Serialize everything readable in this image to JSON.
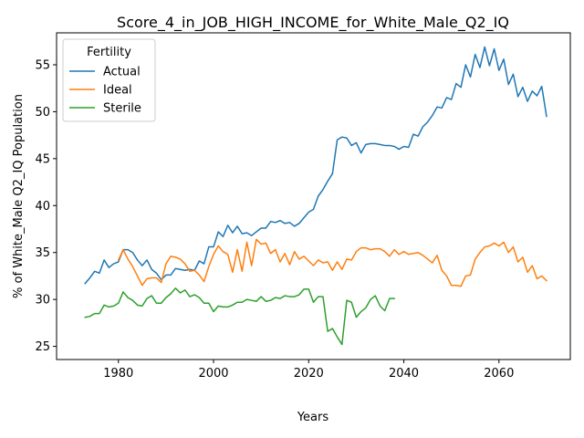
{
  "chart_data": {
    "type": "line",
    "title": "Score_4_in_JOB_HIGH_INCOME_for_White_Male_Q2_IQ",
    "xlabel": "Years",
    "ylabel": "% of White_Male Q2_IQ Population",
    "xlim": [
      1967,
      2075
    ],
    "ylim": [
      23.6,
      58.4
    ],
    "xticks": [
      1980,
      2000,
      2020,
      2040,
      2060
    ],
    "yticks": [
      25,
      30,
      35,
      40,
      45,
      50,
      55
    ],
    "grid": false,
    "legend": {
      "title": "Fertility",
      "position": "top-left"
    },
    "series": [
      {
        "name": "Actual",
        "color": "#1f77b4",
        "x": [
          1973,
          1974,
          1975,
          1976,
          1977,
          1978,
          1979,
          1980,
          1981,
          1982,
          1983,
          1984,
          1985,
          1986,
          1987,
          1988,
          1989,
          1990,
          1991,
          1992,
          1993,
          1994,
          1995,
          1996,
          1997,
          1998,
          1999,
          2000,
          2001,
          2002,
          2003,
          2004,
          2005,
          2006,
          2007,
          2008,
          2009,
          2010,
          2011,
          2012,
          2013,
          2014,
          2015,
          2016,
          2017,
          2018,
          2019,
          2020,
          2021,
          2022,
          2023,
          2024,
          2025,
          2026,
          2027,
          2028,
          2029,
          2030,
          2031,
          2032,
          2033,
          2034,
          2035,
          2036,
          2037,
          2038,
          2039,
          2040,
          2041,
          2042,
          2043,
          2044,
          2045,
          2046,
          2047,
          2048,
          2049,
          2050,
          2051,
          2052,
          2053,
          2054,
          2055,
          2056,
          2057,
          2058,
          2059,
          2060,
          2061,
          2062,
          2063,
          2064,
          2065,
          2066,
          2067,
          2068,
          2069,
          2070
        ],
        "values": [
          31.7,
          32.3,
          33.0,
          32.8,
          34.2,
          33.4,
          33.8,
          34.0,
          35.3,
          35.3,
          35.0,
          34.2,
          33.6,
          34.2,
          33.2,
          32.8,
          32.1,
          32.6,
          32.6,
          33.3,
          33.2,
          33.1,
          33.2,
          33.1,
          34.1,
          33.8,
          35.6,
          35.6,
          37.2,
          36.7,
          37.9,
          37.1,
          37.8,
          37.0,
          37.1,
          36.8,
          37.2,
          37.6,
          37.6,
          38.3,
          38.2,
          38.4,
          38.1,
          38.2,
          37.8,
          38.1,
          38.7,
          39.3,
          39.6,
          41.0,
          41.7,
          42.6,
          43.4,
          47.0,
          47.3,
          47.2,
          46.4,
          46.7,
          45.6,
          46.5,
          46.6,
          46.6,
          46.5,
          46.4,
          46.4,
          46.3,
          46.0,
          46.3,
          46.2,
          47.6,
          47.4,
          48.4,
          48.9,
          49.6,
          50.5,
          50.4,
          51.5,
          51.3,
          53.0,
          52.6,
          55.0,
          53.7,
          56.1,
          54.7,
          56.9,
          54.9,
          56.7,
          54.4,
          55.6,
          52.9,
          54.0,
          51.6,
          52.6,
          51.1,
          52.2,
          51.7,
          52.7,
          49.5
        ]
      },
      {
        "name": "Ideal",
        "color": "#ff7f0e",
        "x": [
          1980,
          1981,
          1982,
          1983,
          1984,
          1985,
          1986,
          1987,
          1988,
          1989,
          1990,
          1991,
          1992,
          1993,
          1994,
          1995,
          1996,
          1997,
          1998,
          1999,
          2000,
          2001,
          2002,
          2003,
          2004,
          2005,
          2006,
          2007,
          2008,
          2009,
          2010,
          2011,
          2012,
          2013,
          2014,
          2015,
          2016,
          2017,
          2018,
          2019,
          2020,
          2021,
          2022,
          2023,
          2024,
          2025,
          2026,
          2027,
          2028,
          2029,
          2030,
          2031,
          2032,
          2033,
          2034,
          2035,
          2036,
          2037,
          2038,
          2039,
          2040,
          2041,
          2042,
          2043,
          2044,
          2045,
          2046,
          2047,
          2048,
          2049,
          2050,
          2051,
          2052,
          2053,
          2054,
          2055,
          2056,
          2057,
          2058,
          2059,
          2060,
          2061,
          2062,
          2063,
          2064,
          2065,
          2066,
          2067,
          2068,
          2069,
          2070
        ],
        "values": [
          34.2,
          35.3,
          34.3,
          33.5,
          32.5,
          31.5,
          32.2,
          32.3,
          32.3,
          31.8,
          33.8,
          34.6,
          34.5,
          34.3,
          33.8,
          33.0,
          33.1,
          32.6,
          31.9,
          33.5,
          34.8,
          35.7,
          35.1,
          34.8,
          32.9,
          35.3,
          33.0,
          36.1,
          33.6,
          36.4,
          35.9,
          36.0,
          34.9,
          35.3,
          34.0,
          34.9,
          33.7,
          35.1,
          34.3,
          34.6,
          34.1,
          33.6,
          34.2,
          33.9,
          34.0,
          33.1,
          34.0,
          33.2,
          34.3,
          34.2,
          35.1,
          35.5,
          35.5,
          35.3,
          35.4,
          35.4,
          35.1,
          34.6,
          35.3,
          34.8,
          35.1,
          34.8,
          34.9,
          35.0,
          34.7,
          34.3,
          33.9,
          34.7,
          33.1,
          32.5,
          31.5,
          31.5,
          31.4,
          32.5,
          32.6,
          34.3,
          35.0,
          35.6,
          35.7,
          36.0,
          35.7,
          36.1,
          35.0,
          35.6,
          34.0,
          34.5,
          32.9,
          33.6,
          32.2,
          32.5,
          32.0
        ]
      },
      {
        "name": "Sterile",
        "color": "#2ca02c",
        "x": [
          1973,
          1974,
          1975,
          1976,
          1977,
          1978,
          1979,
          1980,
          1981,
          1982,
          1983,
          1984,
          1985,
          1986,
          1987,
          1988,
          1989,
          1990,
          1991,
          1992,
          1993,
          1994,
          1995,
          1996,
          1997,
          1998,
          1999,
          2000,
          2001,
          2002,
          2003,
          2004,
          2005,
          2006,
          2007,
          2008,
          2009,
          2010,
          2011,
          2012,
          2013,
          2014,
          2015,
          2016,
          2017,
          2018,
          2019,
          2020,
          2021,
          2022,
          2023,
          2024,
          2025,
          2026,
          2027,
          2028,
          2029,
          2030,
          2031,
          2032,
          2033,
          2034,
          2035,
          2036,
          2037,
          2038
        ],
        "values": [
          28.1,
          28.2,
          28.5,
          28.5,
          29.4,
          29.2,
          29.3,
          29.6,
          30.8,
          30.2,
          29.9,
          29.4,
          29.3,
          30.1,
          30.4,
          29.6,
          29.6,
          30.2,
          30.6,
          31.2,
          30.7,
          31.0,
          30.3,
          30.5,
          30.2,
          29.6,
          29.6,
          28.7,
          29.3,
          29.2,
          29.2,
          29.4,
          29.7,
          29.7,
          30.0,
          29.9,
          29.8,
          30.3,
          29.8,
          29.9,
          30.2,
          30.1,
          30.4,
          30.3,
          30.3,
          30.5,
          31.1,
          31.1,
          29.7,
          30.3,
          30.3,
          26.6,
          26.9,
          26.0,
          25.2,
          29.9,
          29.7,
          28.1,
          28.7,
          29.1,
          30.0,
          30.4,
          29.3,
          28.8,
          30.1,
          30.1
        ]
      }
    ]
  }
}
